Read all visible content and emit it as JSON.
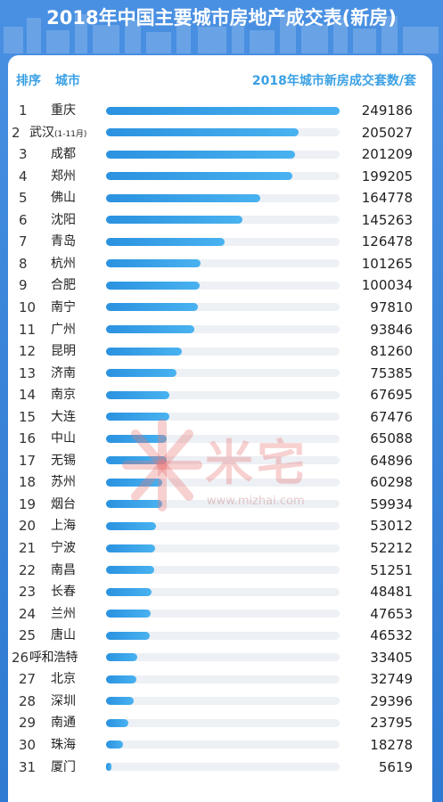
{
  "title": "2018年中国主要城市房地产成交表(新房)",
  "header": {
    "rank_label": "排序",
    "city_label": "城市",
    "value_label": "2018年城市新房成交套数/套"
  },
  "watermark": {
    "brand": "米宅",
    "url": "www.mizhai.com"
  },
  "colors": {
    "background": "#3b86da",
    "bar": "#2a92e0",
    "header_text": "#3aa0e4",
    "track": "#edf0f4"
  },
  "chart_data": {
    "type": "bar",
    "orientation": "horizontal",
    "title": "2018年中国主要城市房地产成交表(新房)",
    "xlabel": "2018年城市新房成交套数/套",
    "ylabel": "城市",
    "ranks": [
      "1",
      "2",
      "3",
      "4",
      "5",
      "6",
      "7",
      "8",
      "9",
      "10",
      "11",
      "12",
      "13",
      "14",
      "15",
      "16",
      "17",
      "18",
      "19",
      "20",
      "21",
      "22",
      "23",
      "24",
      "25",
      "26",
      "27",
      "28",
      "29",
      "30",
      "31"
    ],
    "categories": [
      "重庆",
      "武汉",
      "成都",
      "郑州",
      "佛山",
      "沈阳",
      "青岛",
      "杭州",
      "合肥",
      "南宁",
      "广州",
      "昆明",
      "济南",
      "南京",
      "大连",
      "中山",
      "无锡",
      "苏州",
      "烟台",
      "上海",
      "宁波",
      "南昌",
      "长春",
      "兰州",
      "唐山",
      "呼和浩特",
      "北京",
      "深圳",
      "南通",
      "珠海",
      "厦门"
    ],
    "notes": [
      "",
      "(1-11月)",
      "",
      "",
      "",
      "",
      "",
      "",
      "",
      "",
      "",
      "",
      "",
      "",
      "",
      "",
      "",
      "",
      "",
      "",
      "",
      "",
      "",
      "",
      "",
      "",
      "",
      "",
      "",
      "",
      ""
    ],
    "values": [
      249186,
      205027,
      201209,
      199205,
      164778,
      145263,
      126478,
      101265,
      100034,
      97810,
      93846,
      81260,
      75385,
      67695,
      67476,
      65088,
      64896,
      60298,
      59934,
      53012,
      52212,
      51251,
      48481,
      47653,
      46532,
      33405,
      32749,
      29396,
      23795,
      18278,
      5619
    ],
    "xlim": [
      0,
      249186
    ]
  }
}
